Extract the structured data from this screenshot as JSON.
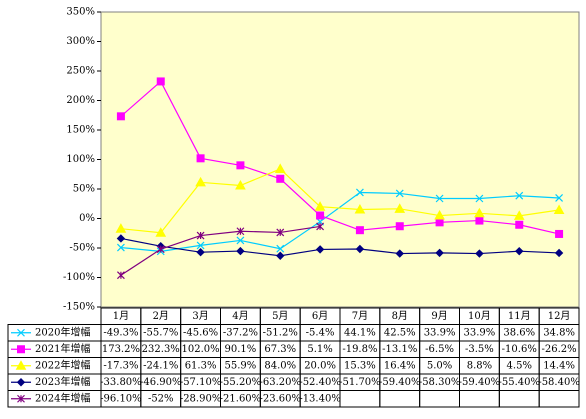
{
  "chart_data": {
    "type": "line",
    "categories": [
      "1月",
      "2月",
      "3月",
      "4月",
      "5月",
      "6月",
      "7月",
      "8月",
      "9月",
      "10月",
      "11月",
      "12月"
    ],
    "ylim": [
      -150,
      350
    ],
    "yticks": [
      {
        "value": -150,
        "label": "-150%"
      },
      {
        "value": -100,
        "label": "-100%"
      },
      {
        "value": -50,
        "label": "-50%"
      },
      {
        "value": 0,
        "label": "0%"
      },
      {
        "value": 50,
        "label": "50%"
      },
      {
        "value": 100,
        "label": "100%"
      },
      {
        "value": 150,
        "label": "150%"
      },
      {
        "value": 200,
        "label": "200%"
      },
      {
        "value": 250,
        "label": "250%"
      },
      {
        "value": 300,
        "label": "300%"
      },
      {
        "value": 350,
        "label": "350%"
      }
    ],
    "grid": false,
    "background": "#ffffcc",
    "series": [
      {
        "name": "2020年增幅",
        "color": "#00ccff",
        "marker": "x",
        "values": [
          -49.3,
          -55.7,
          -45.6,
          -37.2,
          -51.2,
          -5.4,
          44.1,
          42.5,
          33.9,
          33.9,
          38.6,
          34.8
        ],
        "value_labels": [
          "-49.3%",
          "-55.7%",
          "-45.6%",
          "-37.2%",
          "-51.2%",
          "-5.4%",
          "44.1%",
          "42.5%",
          "33.9%",
          "33.9%",
          "38.6%",
          "34.8%"
        ]
      },
      {
        "name": "2021年增幅",
        "color": "#ff00ff",
        "marker": "square",
        "values": [
          173.2,
          232.3,
          102.0,
          90.1,
          67.3,
          5.1,
          -19.8,
          -13.1,
          -6.5,
          -3.5,
          -10.6,
          -26.2
        ],
        "value_labels": [
          "173.2%",
          "232.3%",
          "102.0%",
          "90.1%",
          "67.3%",
          "5.1%",
          "-19.8%",
          "-13.1%",
          "-6.5%",
          "-3.5%",
          "-10.6%",
          "-26.2%"
        ]
      },
      {
        "name": "2022年增幅",
        "color": "#ffff00",
        "marker": "triangle",
        "values": [
          -17.3,
          -24.1,
          61.3,
          55.9,
          84.0,
          20.0,
          15.3,
          16.4,
          5.0,
          8.8,
          4.5,
          14.4
        ],
        "value_labels": [
          "-17.3%",
          "-24.1%",
          "61.3%",
          "55.9%",
          "84.0%",
          "20.0%",
          "15.3%",
          "16.4%",
          "5.0%",
          "8.8%",
          "4.5%",
          "14.4%"
        ]
      },
      {
        "name": "2023年增幅",
        "color": "#000080",
        "marker": "diamond",
        "values": [
          -33.8,
          -46.9,
          -57.1,
          -55.2,
          -63.2,
          -52.4,
          -51.7,
          -59.4,
          -58.3,
          -59.4,
          -55.4,
          -58.4
        ],
        "value_labels": [
          "-33.80%",
          "-46.90%",
          "-57.10%",
          "-55.20%",
          "-63.20%",
          "-52.40%",
          "-51.70%",
          "-59.40%",
          "-58.30%",
          "-59.40%",
          "-55.40%",
          "-58.40%"
        ]
      },
      {
        "name": "2024年增幅",
        "color": "#800080",
        "marker": "star",
        "values": [
          -96.1,
          -52,
          -28.9,
          -21.6,
          -23.6,
          -13.4,
          null,
          null,
          null,
          null,
          null,
          null
        ],
        "value_labels": [
          "-96.10%",
          "-52%",
          "-28.90%",
          "-21.60%",
          "-23.60%",
          "-13.40%",
          null,
          null,
          null,
          null,
          null,
          null
        ]
      }
    ]
  }
}
